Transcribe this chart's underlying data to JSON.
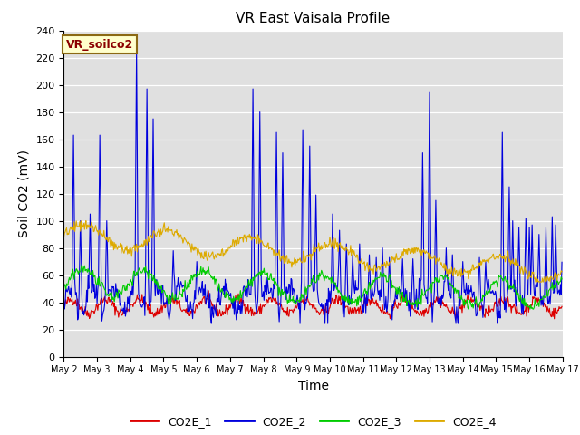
{
  "title": "VR East Vaisala Profile",
  "xlabel": "Time",
  "ylabel": "Soil CO2 (mV)",
  "ylim": [
    0,
    240
  ],
  "yticks": [
    0,
    20,
    40,
    60,
    80,
    100,
    120,
    140,
    160,
    180,
    200,
    220,
    240
  ],
  "legend_label": "VR_soilco2",
  "series_labels": [
    "CO2E_1",
    "CO2E_2",
    "CO2E_3",
    "CO2E_4"
  ],
  "series_colors": [
    "#dd0000",
    "#0000dd",
    "#00cc00",
    "#ddaa00"
  ],
  "x_tick_labels": [
    "May 2",
    "May 3",
    "May 4",
    "May 5",
    "May 6",
    "May 7",
    "May 8",
    "May 9",
    "May 10",
    "May 11",
    "May 12",
    "May 13",
    "May 14",
    "May 15",
    "May 16",
    "May 17"
  ],
  "n_days": 15,
  "pts_per_day": 48,
  "background_color": "#e0e0e0",
  "title_fontsize": 11,
  "axis_label_fontsize": 10
}
